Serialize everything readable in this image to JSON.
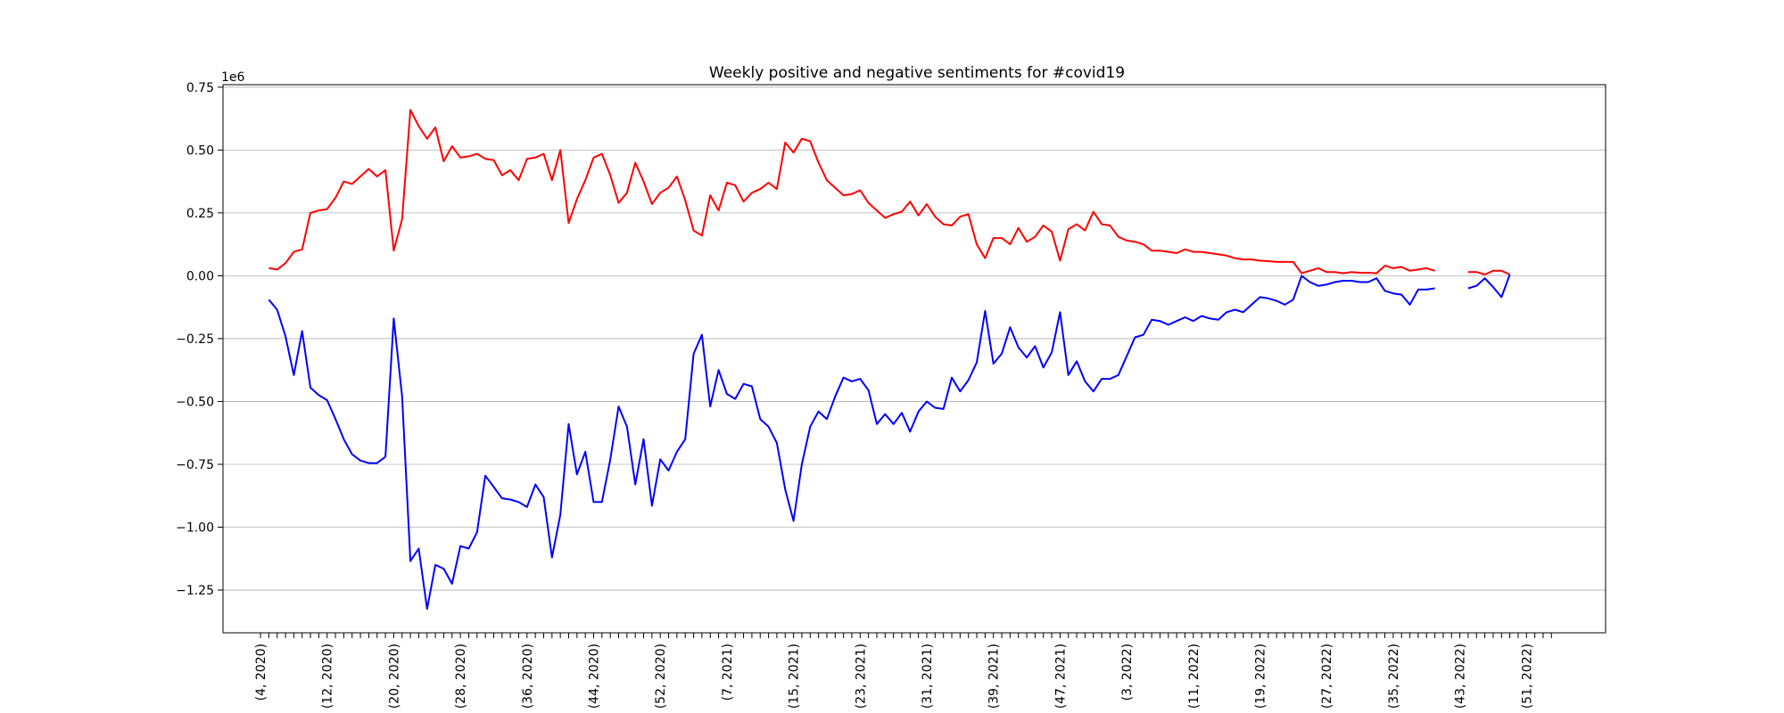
{
  "chart_data": {
    "type": "line",
    "title": "Weekly positive and negative sentiments for #covid19",
    "xlabel": "",
    "ylabel": "",
    "y_offset_label": "1e6",
    "ylim": [
      -1.42,
      0.76
    ],
    "xlim": [
      -5.5,
      160.5
    ],
    "grid": "horizontal",
    "y_ticks": [
      {
        "value": 0.75,
        "label": "0.75"
      },
      {
        "value": 0.5,
        "label": "0.50"
      },
      {
        "value": 0.25,
        "label": "0.25"
      },
      {
        "value": 0.0,
        "label": "0.00"
      },
      {
        "value": -0.25,
        "label": "−0.25"
      },
      {
        "value": -0.5,
        "label": "−0.50"
      },
      {
        "value": -0.75,
        "label": "−0.75"
      },
      {
        "value": -1.0,
        "label": "−1.00"
      },
      {
        "value": -1.25,
        "label": "−1.25"
      }
    ],
    "x_ticks": [
      {
        "index": -1,
        "label": "(4, 2020)"
      },
      {
        "index": 7,
        "label": "(12, 2020)"
      },
      {
        "index": 15,
        "label": "(20, 2020)"
      },
      {
        "index": 23,
        "label": "(28, 2020)"
      },
      {
        "index": 31,
        "label": "(36, 2020)"
      },
      {
        "index": 39,
        "label": "(44, 2020)"
      },
      {
        "index": 47,
        "label": "(52, 2020)"
      },
      {
        "index": 55,
        "label": "(7, 2021)"
      },
      {
        "index": 63,
        "label": "(15, 2021)"
      },
      {
        "index": 71,
        "label": "(23, 2021)"
      },
      {
        "index": 79,
        "label": "(31, 2021)"
      },
      {
        "index": 87,
        "label": "(39, 2021)"
      },
      {
        "index": 95,
        "label": "(47, 2021)"
      },
      {
        "index": 103,
        "label": "(3, 2022)"
      },
      {
        "index": 111,
        "label": "(11, 2022)"
      },
      {
        "index": 119,
        "label": "(19, 2022)"
      },
      {
        "index": 127,
        "label": "(27, 2022)"
      },
      {
        "index": 135,
        "label": "(35, 2022)"
      },
      {
        "index": 143,
        "label": "(43, 2022)"
      },
      {
        "index": 151,
        "label": "(51, 2022)"
      }
    ],
    "series": [
      {
        "color": "#ff0000",
        "values": [
          0.03,
          0.025,
          0.05,
          0.095,
          0.105,
          0.25,
          0.26,
          0.265,
          0.31,
          0.375,
          0.365,
          0.395,
          0.425,
          0.395,
          0.42,
          0.1,
          0.225,
          0.66,
          0.595,
          0.545,
          0.59,
          0.455,
          0.515,
          0.47,
          0.475,
          0.485,
          0.465,
          0.46,
          0.4,
          0.42,
          0.38,
          0.465,
          0.47,
          0.485,
          0.38,
          0.5,
          0.21,
          0.305,
          0.38,
          0.47,
          0.485,
          0.4,
          0.29,
          0.33,
          0.45,
          0.375,
          0.285,
          0.33,
          0.35,
          0.395,
          0.3,
          0.18,
          0.16,
          0.32,
          0.26,
          0.37,
          0.36,
          0.295,
          0.33,
          0.345,
          0.37,
          0.345,
          0.53,
          0.49,
          0.545,
          0.535,
          0.45,
          0.38,
          0.35,
          0.32,
          0.325,
          0.34,
          0.29,
          0.26,
          0.23,
          0.245,
          0.255,
          0.295,
          0.24,
          0.285,
          0.235,
          0.205,
          0.2,
          0.235,
          0.245,
          0.125,
          0.07,
          0.15,
          0.15,
          0.125,
          0.19,
          0.135,
          0.155,
          0.2,
          0.175,
          0.06,
          0.185,
          0.205,
          0.18,
          0.255,
          0.205,
          0.2,
          0.155,
          0.14,
          0.135,
          0.125,
          0.1,
          0.1,
          0.095,
          0.09,
          0.105,
          0.095,
          0.095,
          0.09,
          0.085,
          0.08,
          0.07,
          0.065,
          0.065,
          0.06,
          0.058,
          0.055,
          0.055,
          0.055,
          0.01,
          0.02,
          0.03,
          0.015,
          0.015,
          0.01,
          0.015,
          0.012,
          0.012,
          0.01,
          0.04,
          0.03,
          0.035,
          0.02,
          0.025,
          0.03,
          0.02,
          null,
          null,
          null,
          0.015,
          0.015,
          0.005,
          0.02,
          0.02,
          0.005
        ],
        "values_note": ""
      },
      {
        "color": "#0000ff",
        "values": [
          -0.095,
          -0.135,
          -0.24,
          -0.395,
          -0.22,
          -0.445,
          -0.475,
          -0.495,
          -0.57,
          -0.65,
          -0.71,
          -0.735,
          -0.745,
          -0.745,
          -0.72,
          -0.17,
          -0.48,
          -1.135,
          -1.085,
          -1.325,
          -1.15,
          -1.165,
          -1.225,
          -1.075,
          -1.085,
          -1.02,
          -0.795,
          -0.84,
          -0.885,
          -0.89,
          -0.9,
          -0.92,
          -0.83,
          -0.88,
          -1.12,
          -0.95,
          -0.59,
          -0.79,
          -0.7,
          -0.9,
          -0.9,
          -0.73,
          -0.52,
          -0.6,
          -0.83,
          -0.65,
          -0.915,
          -0.73,
          -0.775,
          -0.7,
          -0.65,
          -0.31,
          -0.235,
          -0.52,
          -0.375,
          -0.47,
          -0.49,
          -0.43,
          -0.44,
          -0.57,
          -0.6,
          -0.665,
          -0.85,
          -0.975,
          -0.75,
          -0.6,
          -0.54,
          -0.57,
          -0.48,
          -0.405,
          -0.42,
          -0.41,
          -0.455,
          -0.59,
          -0.55,
          -0.59,
          -0.545,
          -0.62,
          -0.54,
          -0.5,
          -0.525,
          -0.53,
          -0.405,
          -0.46,
          -0.415,
          -0.345,
          -0.14,
          -0.35,
          -0.31,
          -0.205,
          -0.285,
          -0.325,
          -0.28,
          -0.365,
          -0.305,
          -0.145,
          -0.395,
          -0.34,
          -0.42,
          -0.46,
          -0.41,
          -0.41,
          -0.395,
          -0.32,
          -0.245,
          -0.235,
          -0.175,
          -0.18,
          -0.195,
          -0.18,
          -0.165,
          -0.18,
          -0.16,
          -0.17,
          -0.175,
          -0.145,
          -0.135,
          -0.145,
          -0.115,
          -0.085,
          -0.09,
          -0.1,
          -0.115,
          -0.095,
          0.0,
          -0.025,
          -0.04,
          -0.035,
          -0.025,
          -0.02,
          -0.02,
          -0.025,
          -0.025,
          -0.01,
          -0.06,
          -0.07,
          -0.075,
          -0.115,
          -0.055,
          -0.055,
          -0.05,
          null,
          null,
          null,
          -0.05,
          -0.04,
          -0.01,
          -0.045,
          -0.085,
          0.005
        ],
        "values_note": ""
      }
    ]
  }
}
